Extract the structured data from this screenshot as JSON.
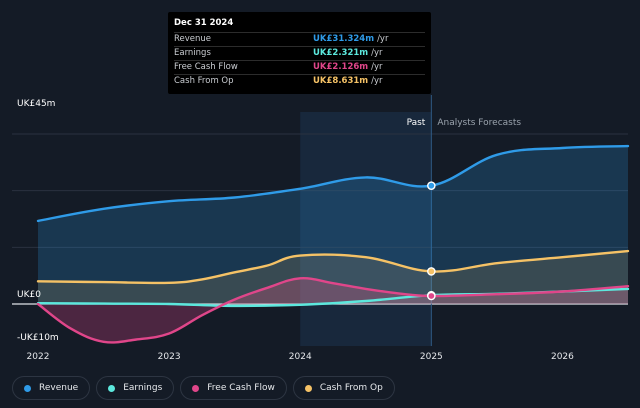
{
  "chart_data": {
    "type": "area",
    "y_axis": {
      "unit": "UK£",
      "top_label": "UK£45m",
      "zero_label": "UK£0",
      "bottom_label": "-UK£10m",
      "ylim": [
        -10,
        45
      ]
    },
    "x_axis": {
      "tick_labels": [
        "2022",
        "2023",
        "2024",
        "2025",
        "2026"
      ],
      "tick_values": [
        2022,
        2023,
        2024,
        2025,
        2026
      ],
      "xlim": [
        2022,
        2026.5
      ]
    },
    "divider": {
      "x": 2025.0,
      "past_label": "Past",
      "forecast_label": "Analysts Forecasts",
      "highlight_start": 2024.0
    },
    "series": [
      {
        "name": "Revenue",
        "color": "#2f9be8",
        "x": [
          2022.0,
          2022.5,
          2023.0,
          2023.5,
          2024.0,
          2024.5,
          2025.0,
          2025.5,
          2026.0,
          2026.5
        ],
        "y": [
          22.0,
          25.2,
          27.2,
          28.2,
          30.5,
          33.5,
          31.324,
          39.5,
          41.3,
          41.8
        ]
      },
      {
        "name": "Earnings",
        "color": "#5ce8dd",
        "x": [
          2022.0,
          2022.5,
          2023.0,
          2023.5,
          2024.0,
          2024.5,
          2025.0,
          2025.5,
          2026.0,
          2026.5
        ],
        "y": [
          0.2,
          0.1,
          0.0,
          -0.5,
          -0.2,
          0.8,
          2.321,
          2.7,
          3.3,
          4.0
        ]
      },
      {
        "name": "Free Cash Flow",
        "color": "#e0468a",
        "x": [
          2022.0,
          2022.25,
          2022.5,
          2022.75,
          2023.0,
          2023.25,
          2023.5,
          2023.75,
          2024.0,
          2024.25,
          2024.5,
          2024.75,
          2025.0,
          2025.5,
          2026.0,
          2026.5
        ],
        "y": [
          0.0,
          -6.5,
          -10.0,
          -9.4,
          -7.8,
          -3.0,
          1.2,
          4.3,
          6.8,
          5.5,
          4.0,
          2.8,
          2.126,
          2.6,
          3.3,
          4.7
        ]
      },
      {
        "name": "Cash From Op",
        "color": "#f5c266",
        "x": [
          2022.0,
          2022.5,
          2023.0,
          2023.25,
          2023.5,
          2023.75,
          2024.0,
          2024.5,
          2025.0,
          2025.5,
          2026.0,
          2026.5
        ],
        "y": [
          6.0,
          5.8,
          5.6,
          6.5,
          8.4,
          10.2,
          12.8,
          12.4,
          8.631,
          10.8,
          12.4,
          14.0
        ]
      }
    ],
    "tooltip": {
      "date": "Dec 31 2024",
      "rows": [
        {
          "label": "Revenue",
          "value": "UK£31.324m",
          "unit": "/yr",
          "color": "#2f9be8"
        },
        {
          "label": "Earnings",
          "value": "UK£2.321m",
          "unit": "/yr",
          "color": "#5ce8dd"
        },
        {
          "label": "Free Cash Flow",
          "value": "UK£2.126m",
          "unit": "/yr",
          "color": "#e0468a"
        },
        {
          "label": "Cash From Op",
          "value": "UK£8.631m",
          "unit": "/yr",
          "color": "#f5c266"
        }
      ]
    }
  },
  "legend": [
    {
      "label": "Revenue",
      "color": "#2f9be8"
    },
    {
      "label": "Earnings",
      "color": "#5ce8dd"
    },
    {
      "label": "Free Cash Flow",
      "color": "#e0468a"
    },
    {
      "label": "Cash From Op",
      "color": "#f5c266"
    }
  ]
}
